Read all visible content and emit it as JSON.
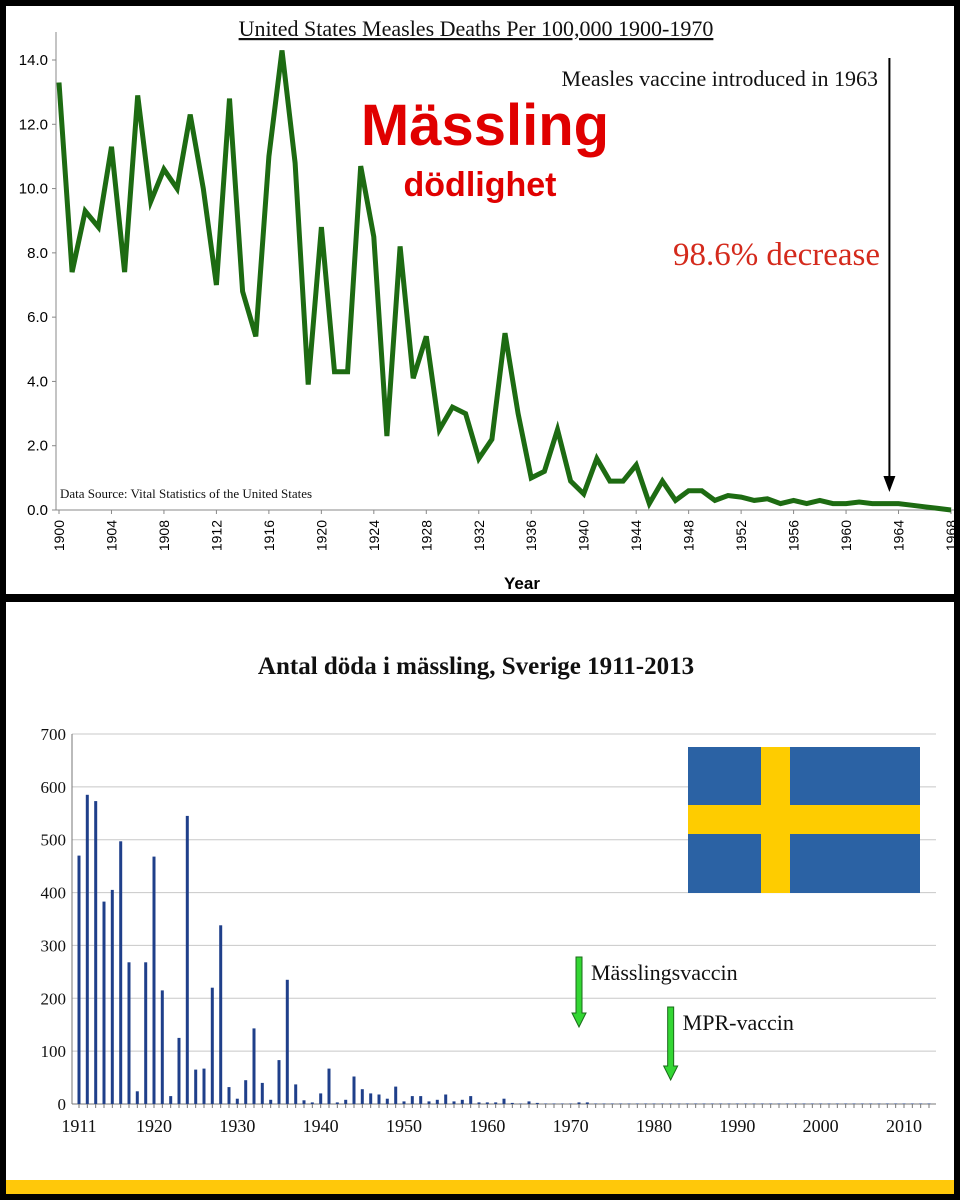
{
  "chart_data": [
    {
      "type": "line",
      "title": "United States Measles Deaths Per 100,000 1900-1970",
      "xlabel": "Year",
      "ylabel": "",
      "ylim": [
        0,
        14
      ],
      "xlim": [
        1900,
        1968
      ],
      "yticks": [
        "0.0",
        "2.0",
        "4.0",
        "6.0",
        "8.0",
        "10.0",
        "12.0",
        "14.0"
      ],
      "xticks": [
        "1900",
        "1904",
        "1908",
        "1912",
        "1916",
        "1920",
        "1924",
        "1928",
        "1932",
        "1936",
        "1940",
        "1944",
        "1948",
        "1952",
        "1956",
        "1960",
        "1964",
        "1968"
      ],
      "grid": false,
      "line_color": "#1d6b12",
      "series": [
        {
          "x": [
            1900,
            1901,
            1902,
            1903,
            1904,
            1905,
            1906,
            1907,
            1908,
            1909,
            1910,
            1911,
            1912,
            1913,
            1914,
            1915,
            1916,
            1917,
            1918,
            1919,
            1920,
            1921,
            1922,
            1923,
            1924,
            1925,
            1926,
            1927,
            1928,
            1929,
            1930,
            1931,
            1932,
            1933,
            1934,
            1935,
            1936,
            1937,
            1938,
            1939,
            1940,
            1941,
            1942,
            1943,
            1944,
            1945,
            1946,
            1947,
            1948,
            1949,
            1950,
            1951,
            1952,
            1953,
            1954,
            1955,
            1956,
            1957,
            1958,
            1959,
            1960,
            1961,
            1962,
            1963,
            1964,
            1965,
            1966,
            1967,
            1968
          ],
          "values": [
            13.3,
            7.4,
            9.3,
            8.8,
            11.3,
            7.4,
            12.9,
            9.6,
            10.6,
            10.0,
            12.3,
            10.0,
            7.0,
            12.8,
            6.8,
            5.4,
            11.0,
            14.3,
            10.8,
            3.9,
            8.8,
            4.3,
            4.3,
            10.7,
            8.5,
            2.3,
            8.2,
            4.1,
            5.4,
            2.5,
            3.2,
            3.0,
            1.6,
            2.2,
            5.5,
            3.0,
            1.0,
            1.2,
            2.5,
            0.9,
            0.5,
            1.6,
            0.9,
            0.9,
            1.4,
            0.2,
            0.9,
            0.3,
            0.6,
            0.6,
            0.3,
            0.45,
            0.4,
            0.3,
            0.35,
            0.2,
            0.3,
            0.2,
            0.3,
            0.2,
            0.2,
            0.25,
            0.2,
            0.2,
            0.2,
            0.15,
            0.1,
            0.05,
            0.0
          ]
        }
      ],
      "annotations": {
        "vaccine_text": "Measles vaccine introduced in 1963",
        "vaccine_year": 1963,
        "decrease_text": "98.6% decrease",
        "source_text": "Data Source:  Vital Statistics of the United States",
        "overlay_title": "Mässling",
        "overlay_subtitle": "dödlighet"
      },
      "colors": {
        "overlay": "#e00000",
        "decrease": "#d42a1c"
      }
    },
    {
      "type": "bar",
      "title": "Antal döda i mässling, Sverige 1911-2013",
      "xlabel": "",
      "ylabel": "",
      "ylim": [
        0,
        700
      ],
      "xlim": [
        1911,
        2013
      ],
      "yticks": [
        "0",
        "100",
        "200",
        "300",
        "400",
        "500",
        "600",
        "700"
      ],
      "xticks": [
        "1911",
        "1920",
        "1930",
        "1940",
        "1950",
        "1960",
        "1970",
        "1980",
        "1990",
        "2000",
        "2010"
      ],
      "grid": true,
      "bar_color": "#1f3f8a",
      "x": [
        1911,
        1912,
        1913,
        1914,
        1915,
        1916,
        1917,
        1918,
        1919,
        1920,
        1921,
        1922,
        1923,
        1924,
        1925,
        1926,
        1927,
        1928,
        1929,
        1930,
        1931,
        1932,
        1933,
        1934,
        1935,
        1936,
        1937,
        1938,
        1939,
        1940,
        1941,
        1942,
        1943,
        1944,
        1945,
        1946,
        1947,
        1948,
        1949,
        1950,
        1951,
        1952,
        1953,
        1954,
        1955,
        1956,
        1957,
        1958,
        1959,
        1960,
        1961,
        1962,
        1963,
        1964,
        1965,
        1966,
        1967,
        1968,
        1969,
        1970,
        1971,
        1972,
        1973,
        1974,
        1975,
        1976,
        1977,
        1978,
        1979,
        1980,
        1981,
        1982,
        1983,
        1984,
        1985,
        1986,
        1987,
        1988,
        1989,
        1990,
        1991,
        1992,
        1993,
        1994,
        1995,
        1996,
        1997,
        1998,
        1999,
        2000,
        2001,
        2002,
        2003,
        2004,
        2005,
        2006,
        2007,
        2008,
        2009,
        2010,
        2011,
        2012,
        2013
      ],
      "values": [
        470,
        585,
        573,
        383,
        405,
        497,
        268,
        24,
        268,
        468,
        215,
        15,
        125,
        545,
        65,
        67,
        220,
        338,
        32,
        10,
        45,
        143,
        40,
        8,
        83,
        235,
        37,
        7,
        3,
        20,
        67,
        3,
        8,
        52,
        28,
        20,
        18,
        10,
        33,
        5,
        15,
        15,
        5,
        8,
        18,
        5,
        8,
        15,
        3,
        3,
        3,
        10,
        2,
        1,
        5,
        2,
        1,
        1,
        1,
        1,
        3,
        3,
        1,
        1,
        1,
        1,
        1,
        1,
        1,
        1,
        1,
        1,
        1,
        1,
        1,
        1,
        1,
        1,
        1,
        1,
        1,
        1,
        1,
        1,
        1,
        1,
        1,
        1,
        1,
        1,
        1,
        1,
        1,
        1,
        1,
        1,
        1,
        1,
        1,
        1,
        1,
        1,
        1
      ],
      "annotations": [
        {
          "text": "Mässlingsvaccin",
          "year": 1971
        },
        {
          "text": "MPR-vaccin",
          "year": 1982
        }
      ],
      "flag": {
        "name": "swedish-flag",
        "blue": "#2b62a4",
        "yellow": "#fecc00"
      }
    }
  ]
}
